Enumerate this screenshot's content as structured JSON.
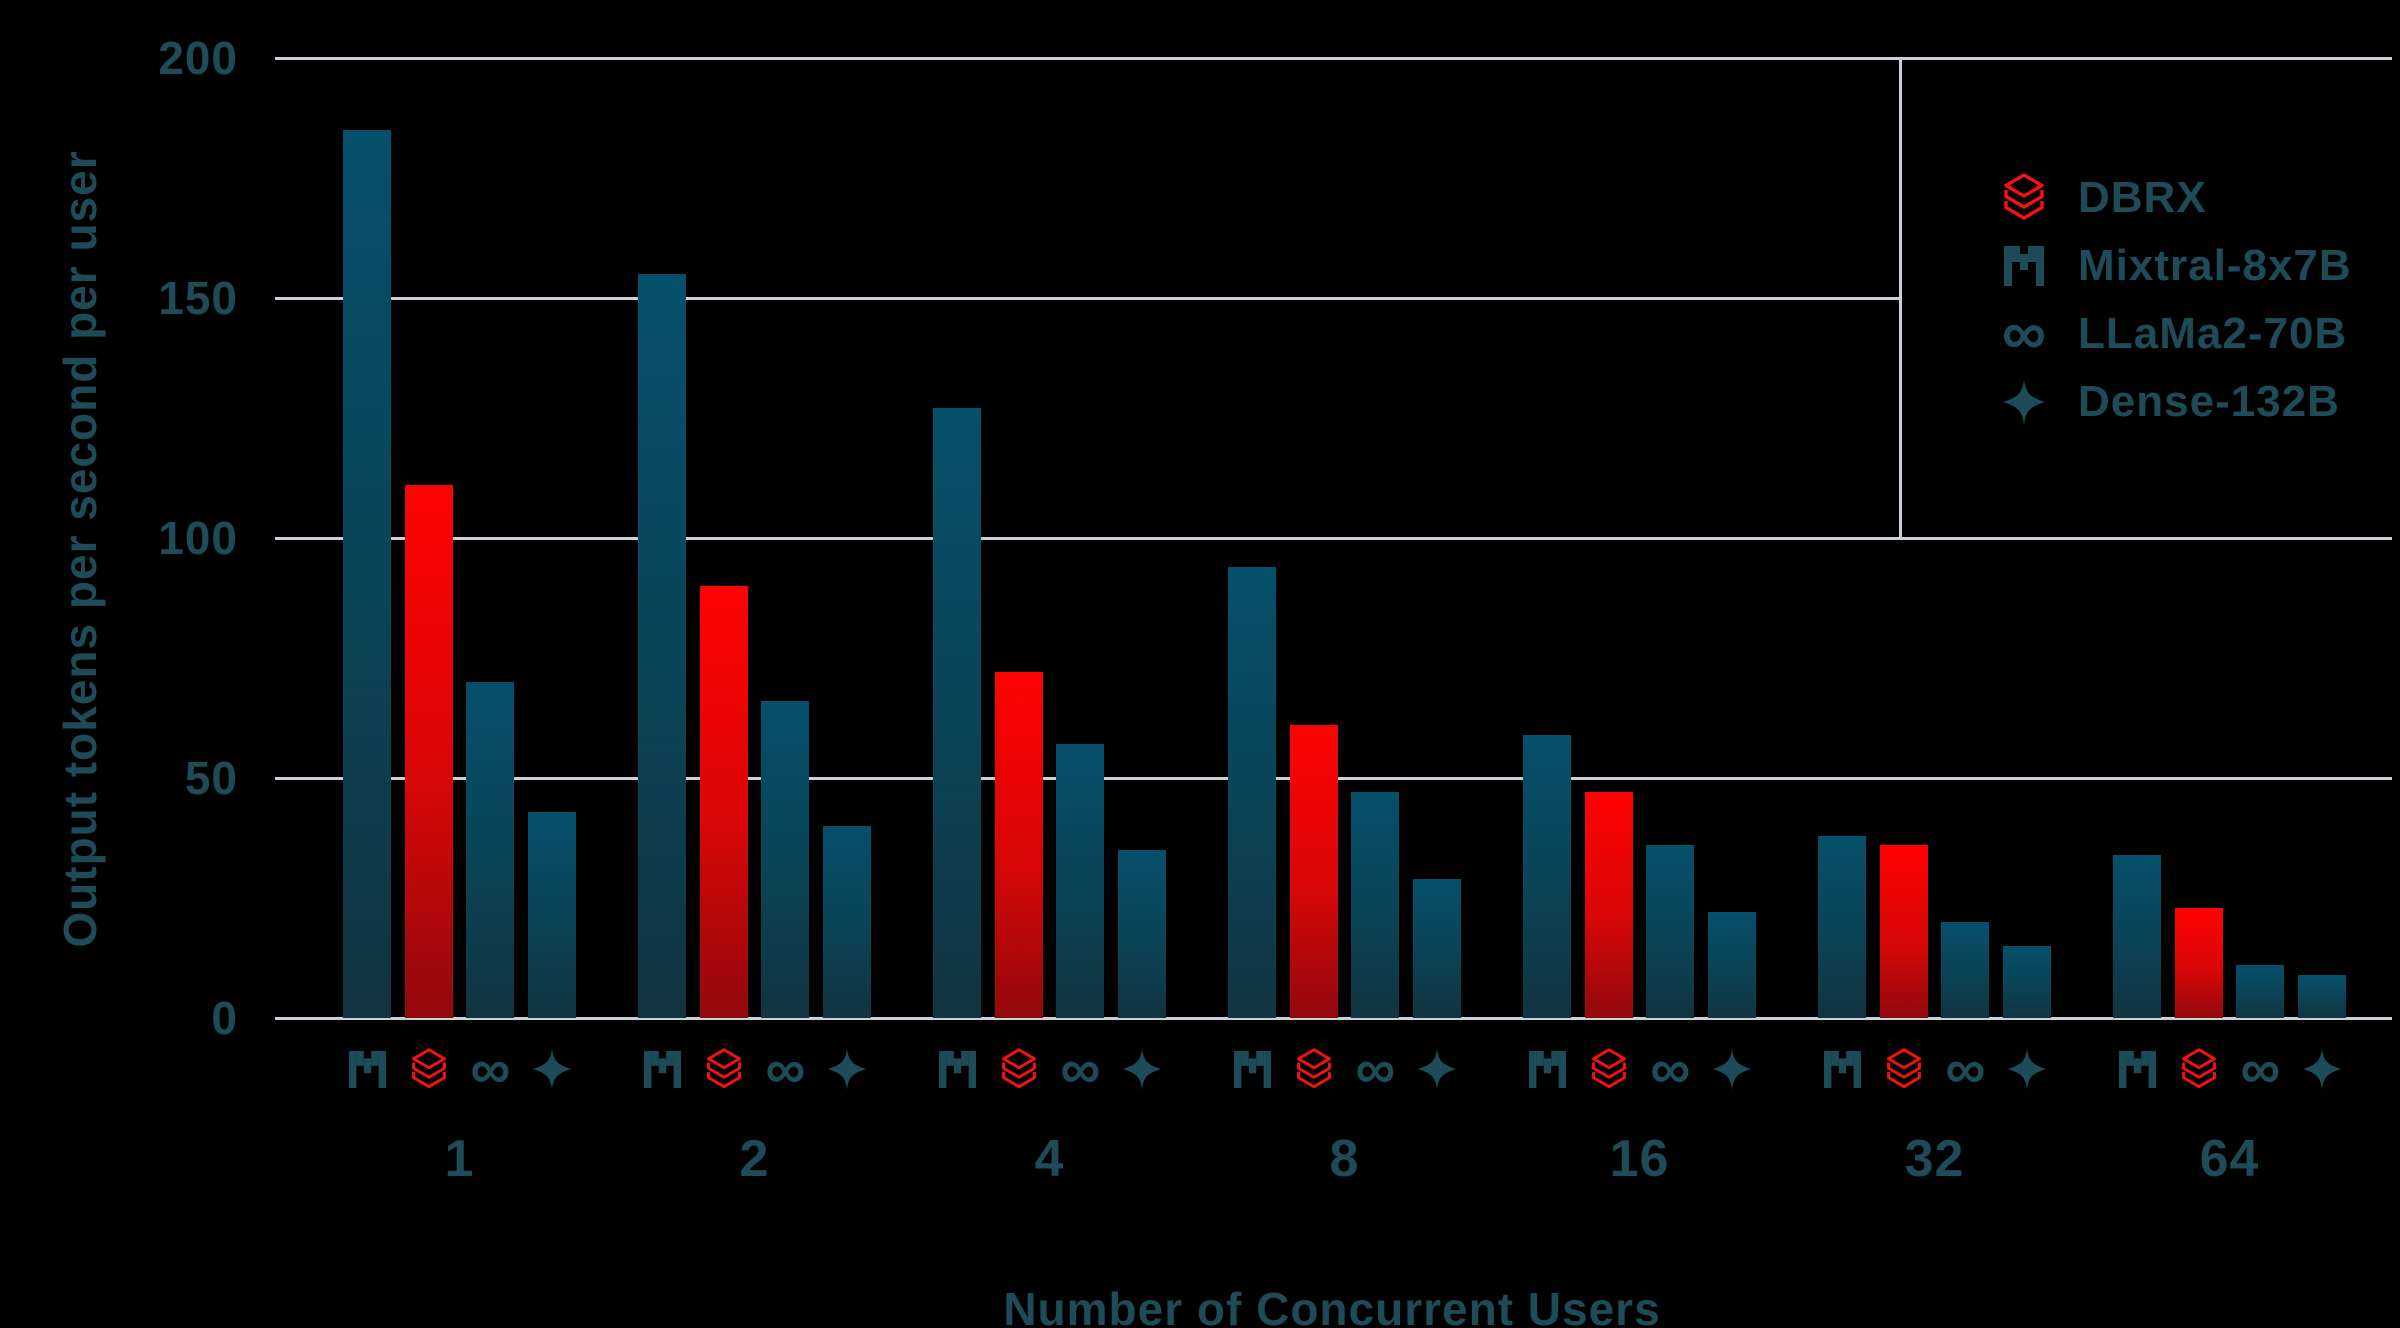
{
  "chart_data": {
    "type": "bar",
    "title": "",
    "xlabel": "Number of Concurrent Users",
    "ylabel": "Output tokens per second per user",
    "categories": [
      "1",
      "2",
      "4",
      "8",
      "16",
      "32",
      "64"
    ],
    "series": [
      {
        "name": "Mixtral-8x7B",
        "icon": "mistral-icon",
        "color_role": "teal",
        "values": [
          185,
          155,
          127,
          94,
          59,
          38,
          34
        ]
      },
      {
        "name": "DBRX",
        "icon": "databricks-icon",
        "color_role": "red",
        "values": [
          111,
          90,
          72,
          61,
          47,
          36,
          23
        ]
      },
      {
        "name": "LLaMa2-70B",
        "icon": "meta-infinity-icon",
        "color_role": "teal",
        "values": [
          70,
          66,
          57,
          47,
          36,
          20,
          11
        ]
      },
      {
        "name": "Dense-132B",
        "icon": "sparkle-icon",
        "color_role": "teal",
        "values": [
          43,
          40,
          35,
          29,
          22,
          15,
          9
        ]
      }
    ],
    "legend": [
      {
        "label": "DBRX",
        "icon": "databricks-icon"
      },
      {
        "label": "Mixtral-8x7B",
        "icon": "mistral-icon"
      },
      {
        "label": "LLaMa2-70B",
        "icon": "meta-infinity-icon"
      },
      {
        "label": "Dense-132B",
        "icon": "sparkle-icon"
      }
    ],
    "y_ticks": [
      200,
      150,
      100,
      50,
      0
    ],
    "ylim": [
      0,
      200
    ],
    "grid": true,
    "legend_position": "top-right"
  },
  "colors": {
    "background": "#000000",
    "gridline": "#c9d0da",
    "text": "#1d4b58",
    "bar_teal_top": "#06506a",
    "bar_teal_bottom": "#123440",
    "bar_red_top": "#ff0202",
    "bar_red_bottom": "#92090d",
    "brand_red": "#f61111"
  }
}
